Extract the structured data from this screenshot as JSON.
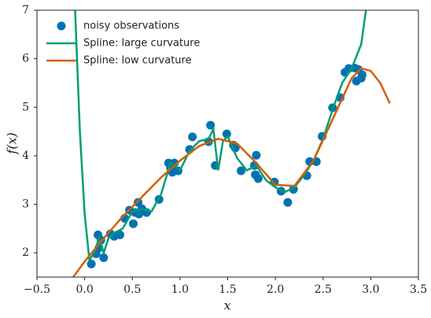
{
  "chart_data": {
    "type": "line",
    "xlabel": "x",
    "ylabel": "f(x)",
    "xlim": [
      -0.5,
      3.5
    ],
    "ylim": [
      1.5,
      7
    ],
    "xticks": [
      {
        "value": -0.5,
        "label": "−0.5"
      },
      {
        "value": 0,
        "label": "0.0"
      },
      0.5,
      {
        "value": 1,
        "label": "1.0"
      },
      1.5,
      {
        "value": 2,
        "label": "2.0"
      },
      2.5,
      {
        "value": 3,
        "label": "3.0"
      },
      3.5
    ],
    "yticks": [
      2,
      3,
      4,
      5,
      6,
      7
    ],
    "legend": "upper left",
    "series": [
      {
        "name": "noisy observations",
        "type": "scatter",
        "color": "#0072b2",
        "x": [
          0.07,
          0.12,
          0.14,
          0.17,
          0.15,
          0.2,
          0.27,
          0.31,
          0.37,
          0.42,
          0.47,
          0.51,
          0.53,
          0.56,
          0.57,
          0.6,
          0.65,
          0.78,
          0.88,
          0.9,
          0.92,
          0.94,
          0.98,
          1.1,
          1.13,
          1.3,
          1.32,
          1.37,
          1.49,
          1.56,
          1.58,
          1.64,
          1.78,
          1.8,
          1.82,
          1.79,
          1.99,
          2.06,
          2.13,
          2.19,
          2.33,
          2.36,
          2.43,
          2.49,
          2.6,
          2.68,
          2.73,
          2.77,
          2.83,
          2.87,
          2.85,
          2.9,
          2.91
        ],
        "values": [
          1.77,
          1.98,
          2.37,
          2.26,
          2.1,
          1.9,
          2.39,
          2.34,
          2.37,
          2.71,
          2.88,
          2.6,
          2.83,
          3.04,
          2.8,
          2.91,
          2.83,
          3.1,
          3.85,
          3.75,
          3.66,
          3.85,
          3.69,
          4.13,
          4.39,
          4.29,
          4.63,
          3.8,
          4.45,
          4.22,
          4.16,
          3.69,
          3.8,
          4.01,
          3.53,
          3.61,
          3.46,
          3.27,
          3.04,
          3.31,
          3.59,
          3.88,
          3.88,
          4.4,
          4.99,
          5.2,
          5.72,
          5.8,
          5.81,
          5.78,
          5.54,
          5.6,
          5.67
        ]
      },
      {
        "name": "Spline: large curvature",
        "type": "line",
        "color": "#009e73",
        "x": [
          -0.1,
          -0.05,
          0,
          0.05,
          0.1,
          0.15,
          0.2,
          0.25,
          0.3,
          0.4,
          0.5,
          0.6,
          0.7,
          0.8,
          0.9,
          1.0,
          1.1,
          1.2,
          1.3,
          1.35,
          1.4,
          1.45,
          1.5,
          1.6,
          1.7,
          1.8,
          1.9,
          2.0,
          2.1,
          2.2,
          2.3,
          2.4,
          2.5,
          2.6,
          2.7,
          2.8,
          2.9,
          2.95
        ],
        "values": [
          7,
          4.5,
          2.8,
          1.85,
          2.0,
          2.3,
          2.0,
          2.3,
          2.4,
          2.5,
          2.85,
          2.9,
          2.85,
          3.2,
          3.85,
          3.7,
          4.1,
          4.3,
          4.35,
          4.55,
          3.7,
          4.3,
          4.4,
          3.95,
          3.7,
          3.8,
          3.5,
          3.35,
          3.25,
          3.35,
          3.6,
          3.9,
          4.35,
          4.95,
          5.5,
          5.8,
          6.3,
          7
        ]
      },
      {
        "name": "Spline: low curvature",
        "type": "line",
        "color": "#d55e00",
        "x": [
          -0.12,
          0,
          0.2,
          0.4,
          0.6,
          0.8,
          1.0,
          1.2,
          1.4,
          1.6,
          1.8,
          2.0,
          2.2,
          2.4,
          2.6,
          2.8,
          2.9,
          3.0,
          3.1,
          3.2
        ],
        "values": [
          1.5,
          1.82,
          2.3,
          2.75,
          3.15,
          3.55,
          3.9,
          4.2,
          4.35,
          4.25,
          3.85,
          3.4,
          3.38,
          3.9,
          4.75,
          5.6,
          5.8,
          5.75,
          5.5,
          5.08
        ]
      }
    ]
  }
}
